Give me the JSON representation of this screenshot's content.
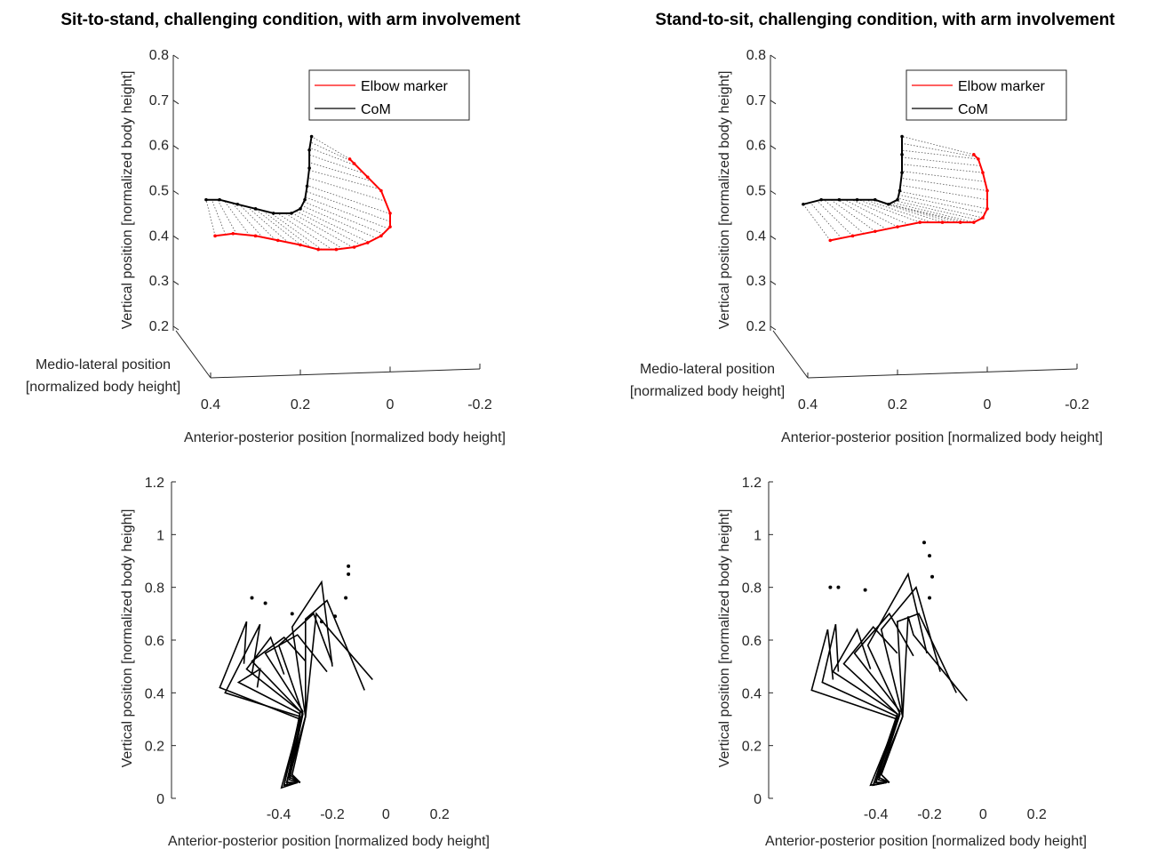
{
  "chart_data": [
    {
      "type": "line",
      "projection": "3d",
      "title": "Sit-to-stand, challenging condition, with arm involvement",
      "xlabel": "Anterior-posterior position [normalized body height]",
      "ylabel": [
        "Medio-lateral position",
        "[normalized body height]"
      ],
      "zlabel": "Vertical position [normalized body height]",
      "xticks": [
        "0.4",
        "0.2",
        "0",
        "-0.2"
      ],
      "zticks": [
        "0.2",
        "0.3",
        "0.4",
        "0.5",
        "0.6",
        "0.7",
        "0.8"
      ],
      "zlim": [
        0.2,
        0.8
      ],
      "legend": {
        "position": "top-right",
        "entries": [
          "Elbow marker",
          "CoM"
        ]
      },
      "colors": {
        "elbow": "#ff0000",
        "com": "#000000"
      },
      "series": [
        {
          "name": "Elbow marker",
          "x": [
            0.39,
            0.35,
            0.3,
            0.25,
            0.2,
            0.16,
            0.12,
            0.08,
            0.05,
            0.02,
            0.0,
            0.0,
            0.02,
            0.05,
            0.08,
            0.09
          ],
          "z": [
            0.4,
            0.405,
            0.4,
            0.39,
            0.38,
            0.37,
            0.37,
            0.375,
            0.385,
            0.4,
            0.42,
            0.45,
            0.5,
            0.53,
            0.56,
            0.57
          ]
        },
        {
          "name": "CoM",
          "x": [
            0.41,
            0.38,
            0.34,
            0.3,
            0.26,
            0.22,
            0.2,
            0.19,
            0.185,
            0.18,
            0.18,
            0.175
          ],
          "z": [
            0.48,
            0.48,
            0.47,
            0.46,
            0.45,
            0.45,
            0.46,
            0.48,
            0.51,
            0.55,
            0.59,
            0.62
          ]
        }
      ]
    },
    {
      "type": "line",
      "projection": "3d",
      "title": "Stand-to-sit, challenging condition, with arm involvement",
      "xlabel": "Anterior-posterior position [normalized body height]",
      "ylabel": [
        "Medio-lateral position",
        "[normalized body height]"
      ],
      "zlabel": "Vertical position [normalized body height]",
      "xticks": [
        "0.4",
        "0.2",
        "0",
        "-0.2"
      ],
      "zticks": [
        "0.2",
        "0.3",
        "0.4",
        "0.5",
        "0.6",
        "0.7",
        "0.8"
      ],
      "zlim": [
        0.2,
        0.8
      ],
      "legend": {
        "position": "top-right",
        "entries": [
          "Elbow marker",
          "CoM"
        ]
      },
      "colors": {
        "elbow": "#ff0000",
        "com": "#000000"
      },
      "series": [
        {
          "name": "Elbow marker",
          "x": [
            0.35,
            0.3,
            0.25,
            0.2,
            0.15,
            0.1,
            0.06,
            0.03,
            0.01,
            0.0,
            0.0,
            0.01,
            0.02,
            0.03
          ],
          "z": [
            0.39,
            0.4,
            0.41,
            0.42,
            0.43,
            0.43,
            0.43,
            0.43,
            0.44,
            0.46,
            0.5,
            0.54,
            0.57,
            0.58
          ]
        },
        {
          "name": "CoM",
          "x": [
            0.41,
            0.37,
            0.33,
            0.29,
            0.25,
            0.22,
            0.2,
            0.195,
            0.19,
            0.19,
            0.19
          ],
          "z": [
            0.47,
            0.48,
            0.48,
            0.48,
            0.48,
            0.47,
            0.48,
            0.5,
            0.54,
            0.58,
            0.62
          ]
        }
      ]
    },
    {
      "type": "line",
      "title": "",
      "xlabel": "Anterior-posterior position [normalized body height]",
      "ylabel": "Vertical position [normalized body height]",
      "xlim": [
        -0.8,
        0.38
      ],
      "ylim": [
        0,
        1.2
      ],
      "xticks": [
        "-0.4",
        "-0.2",
        "0",
        "0.2"
      ],
      "yticks": [
        "0",
        "0.2",
        "0.4",
        "0.6",
        "0.8",
        "1",
        "1.2"
      ],
      "stick_figures": [
        [
          [
            -0.33,
            0.06
          ],
          [
            -0.39,
            0.04
          ],
          [
            -0.32,
            0.3
          ],
          [
            -0.62,
            0.42
          ],
          [
            -0.52,
            0.67
          ],
          [
            -0.53,
            0.51
          ]
        ],
        [
          [
            -0.33,
            0.06
          ],
          [
            -0.38,
            0.05
          ],
          [
            -0.32,
            0.31
          ],
          [
            -0.6,
            0.4
          ],
          [
            -0.47,
            0.66
          ],
          [
            -0.5,
            0.47
          ]
        ],
        [
          [
            -0.33,
            0.06
          ],
          [
            -0.38,
            0.05
          ],
          [
            -0.32,
            0.32
          ],
          [
            -0.55,
            0.44
          ],
          [
            -0.47,
            0.49
          ],
          [
            -0.48,
            0.42
          ]
        ],
        [
          [
            -0.33,
            0.06
          ],
          [
            -0.37,
            0.05
          ],
          [
            -0.32,
            0.33
          ],
          [
            -0.52,
            0.49
          ],
          [
            -0.43,
            0.61
          ],
          [
            -0.38,
            0.47
          ]
        ],
        [
          [
            -0.33,
            0.06
          ],
          [
            -0.37,
            0.06
          ],
          [
            -0.31,
            0.32
          ],
          [
            -0.5,
            0.52
          ],
          [
            -0.38,
            0.61
          ],
          [
            -0.3,
            0.52
          ]
        ],
        [
          [
            -0.33,
            0.06
          ],
          [
            -0.37,
            0.06
          ],
          [
            -0.31,
            0.33
          ],
          [
            -0.45,
            0.55
          ],
          [
            -0.33,
            0.62
          ],
          [
            -0.22,
            0.48
          ]
        ],
        [
          [
            -0.32,
            0.06
          ],
          [
            -0.36,
            0.07
          ],
          [
            -0.31,
            0.32
          ],
          [
            -0.4,
            0.58
          ],
          [
            -0.27,
            0.7
          ],
          [
            -0.2,
            0.51
          ]
        ],
        [
          [
            -0.32,
            0.06
          ],
          [
            -0.36,
            0.08
          ],
          [
            -0.3,
            0.31
          ],
          [
            -0.35,
            0.65
          ],
          [
            -0.24,
            0.82
          ],
          [
            -0.2,
            0.5
          ]
        ],
        [
          [
            -0.32,
            0.06
          ],
          [
            -0.36,
            0.09
          ],
          [
            -0.3,
            0.31
          ],
          [
            -0.3,
            0.68
          ],
          [
            -0.22,
            0.75
          ],
          [
            -0.08,
            0.41
          ]
        ],
        [
          [
            -0.32,
            0.06
          ],
          [
            -0.35,
            0.09
          ],
          [
            -0.3,
            0.31
          ],
          [
            -0.26,
            0.7
          ],
          [
            -0.22,
            0.65
          ],
          [
            -0.05,
            0.45
          ]
        ]
      ],
      "points": [
        [
          -0.5,
          0.76
        ],
        [
          -0.45,
          0.74
        ],
        [
          -0.35,
          0.7
        ],
        [
          -0.24,
          0.67
        ],
        [
          -0.19,
          0.69
        ],
        [
          -0.15,
          0.76
        ],
        [
          -0.14,
          0.85
        ],
        [
          -0.14,
          0.88
        ]
      ]
    },
    {
      "type": "line",
      "title": "",
      "xlabel": "Anterior-posterior position [normalized body height]",
      "ylabel": "Vertical position [normalized body height]",
      "xlim": [
        -0.8,
        0.38
      ],
      "ylim": [
        0,
        1.2
      ],
      "xticks": [
        "-0.4",
        "-0.2",
        "0",
        "0.2"
      ],
      "yticks": [
        "0",
        "0.2",
        "0.4",
        "0.6",
        "0.8",
        "1",
        "1.2"
      ],
      "stick_figures": [
        [
          [
            -0.36,
            0.06
          ],
          [
            -0.42,
            0.05
          ],
          [
            -0.32,
            0.3
          ],
          [
            -0.64,
            0.41
          ],
          [
            -0.58,
            0.64
          ],
          [
            -0.56,
            0.45
          ]
        ],
        [
          [
            -0.36,
            0.06
          ],
          [
            -0.41,
            0.05
          ],
          [
            -0.32,
            0.31
          ],
          [
            -0.6,
            0.44
          ],
          [
            -0.55,
            0.66
          ],
          [
            -0.54,
            0.48
          ]
        ],
        [
          [
            -0.36,
            0.06
          ],
          [
            -0.41,
            0.05
          ],
          [
            -0.32,
            0.32
          ],
          [
            -0.56,
            0.48
          ],
          [
            -0.47,
            0.64
          ],
          [
            -0.42,
            0.49
          ]
        ],
        [
          [
            -0.36,
            0.06
          ],
          [
            -0.4,
            0.06
          ],
          [
            -0.32,
            0.32
          ],
          [
            -0.52,
            0.51
          ],
          [
            -0.41,
            0.65
          ],
          [
            -0.32,
            0.55
          ]
        ],
        [
          [
            -0.36,
            0.06
          ],
          [
            -0.4,
            0.06
          ],
          [
            -0.31,
            0.33
          ],
          [
            -0.48,
            0.55
          ],
          [
            -0.35,
            0.7
          ],
          [
            -0.26,
            0.54
          ]
        ],
        [
          [
            -0.35,
            0.06
          ],
          [
            -0.39,
            0.07
          ],
          [
            -0.31,
            0.32
          ],
          [
            -0.43,
            0.58
          ],
          [
            -0.28,
            0.85
          ],
          [
            -0.21,
            0.55
          ]
        ],
        [
          [
            -0.35,
            0.06
          ],
          [
            -0.39,
            0.08
          ],
          [
            -0.3,
            0.31
          ],
          [
            -0.38,
            0.64
          ],
          [
            -0.25,
            0.8
          ],
          [
            -0.16,
            0.48
          ]
        ],
        [
          [
            -0.35,
            0.06
          ],
          [
            -0.38,
            0.09
          ],
          [
            -0.3,
            0.31
          ],
          [
            -0.32,
            0.67
          ],
          [
            -0.24,
            0.7
          ],
          [
            -0.1,
            0.4
          ]
        ],
        [
          [
            -0.35,
            0.06
          ],
          [
            -0.38,
            0.09
          ],
          [
            -0.3,
            0.31
          ],
          [
            -0.28,
            0.69
          ],
          [
            -0.26,
            0.62
          ],
          [
            -0.06,
            0.37
          ]
        ]
      ],
      "points": [
        [
          -0.57,
          0.8
        ],
        [
          -0.54,
          0.8
        ],
        [
          -0.44,
          0.79
        ],
        [
          -0.22,
          0.97
        ],
        [
          -0.2,
          0.92
        ],
        [
          -0.19,
          0.84
        ],
        [
          -0.2,
          0.76
        ]
      ]
    }
  ]
}
